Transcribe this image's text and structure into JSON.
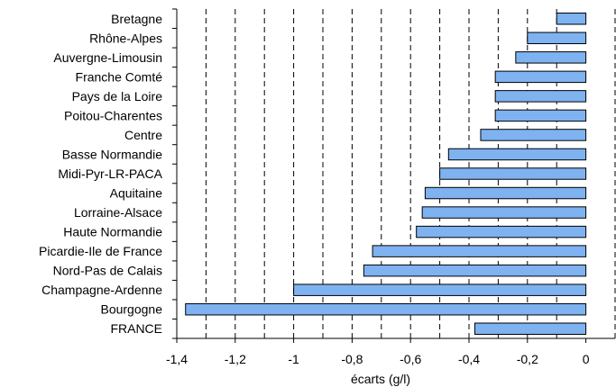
{
  "chart_data": {
    "type": "bar",
    "orientation": "horizontal",
    "categories": [
      "Bretagne",
      "Rhône-Alpes",
      "Auvergne-Limousin",
      "Franche Comté",
      "Pays de la Loire",
      "Poitou-Charentes",
      "Centre",
      "Basse Normandie",
      "Midi-Pyr-LR-PACA",
      "Aquitaine",
      "Lorraine-Alsace",
      "Haute Normandie",
      "Picardie-Ile de France",
      "Nord-Pas de Calais",
      "Champagne-Ardenne",
      "Bourgogne",
      "FRANCE"
    ],
    "values": [
      -0.1,
      -0.2,
      -0.24,
      -0.31,
      -0.31,
      -0.31,
      -0.36,
      -0.47,
      -0.5,
      -0.55,
      -0.56,
      -0.58,
      -0.73,
      -0.76,
      -1.0,
      -1.37,
      -0.38
    ],
    "xlabel": "écarts (g/l)",
    "xlim": [
      -1.4,
      0.1
    ],
    "xticks": [
      -1.4,
      -1.2,
      -1,
      -0.8,
      -0.6,
      -0.4,
      -0.2,
      0
    ],
    "xtick_labels": [
      "-1,4",
      "-1,2",
      "-1",
      "-0,8",
      "-0,6",
      "-0,4",
      "-0,2",
      "0"
    ],
    "gridlines_x": [
      -1.3,
      -1.2,
      -1.1,
      -1.0,
      -0.9,
      -0.8,
      -0.7,
      -0.6,
      -0.5,
      -0.4,
      -0.3,
      -0.2,
      -0.1,
      0.1
    ],
    "grid": "vertical dashed",
    "bar_color": "#7fb2f0",
    "bar_edge_color": "#000000"
  }
}
